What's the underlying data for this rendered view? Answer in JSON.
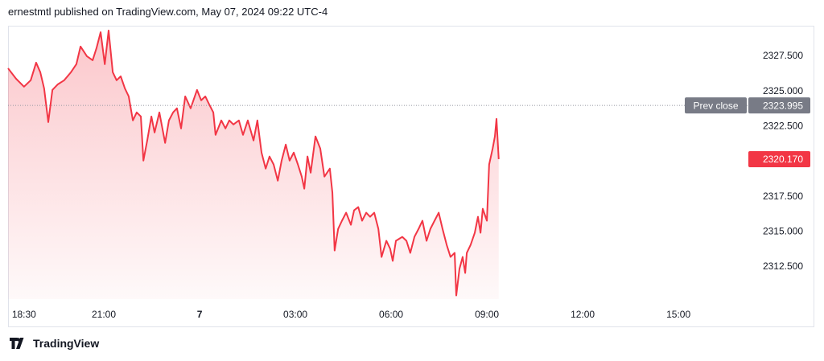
{
  "header": "ernestmtl published on TradingView.com, May 07, 2024 09:22 UTC-4",
  "footer": "TradingView",
  "chart_data": {
    "type": "line",
    "x": [
      0,
      0.25,
      0.5,
      0.71,
      0.88,
      1.01,
      1.13,
      1.26,
      1.39,
      1.56,
      1.76,
      1.97,
      2.14,
      2.27,
      2.47,
      2.65,
      2.77,
      2.9,
      3.03,
      3.15,
      3.28,
      3.4,
      3.53,
      3.66,
      3.78,
      3.91,
      4.03,
      4.16,
      4.24,
      4.36,
      4.49,
      4.59,
      4.74,
      4.92,
      5.04,
      5.17,
      5.29,
      5.42,
      5.55,
      5.72,
      5.92,
      6.05,
      6.18,
      6.3,
      6.43,
      6.5,
      6.68,
      6.81,
      6.93,
      7.06,
      7.23,
      7.36,
      7.51,
      7.69,
      7.81,
      7.94,
      8.07,
      8.19,
      8.32,
      8.45,
      8.57,
      8.7,
      8.82,
      8.95,
      9.08,
      9.2,
      9.28,
      9.38,
      9.48,
      9.63,
      9.78,
      9.91,
      10.08,
      10.16,
      10.23,
      10.34,
      10.46,
      10.59,
      10.74,
      10.84,
      10.97,
      11.09,
      11.22,
      11.34,
      11.47,
      11.6,
      11.7,
      11.85,
      11.97,
      12.05,
      12.15,
      12.35,
      12.48,
      12.6,
      12.73,
      12.86,
      12.98,
      13.11,
      13.23,
      13.36,
      13.49,
      13.61,
      13.74,
      13.86,
      13.99,
      14.04,
      14.14,
      14.24,
      14.32,
      14.37,
      14.49,
      14.62,
      14.72,
      14.8,
      14.87,
      15,
      15.07,
      15.18,
      15.25,
      15.3,
      15.37
    ],
    "series": [
      {
        "color": "#f23645",
        "values": [
          2326.64,
          2325.9,
          2325.33,
          2325.79,
          2327.04,
          2326.36,
          2325.21,
          2322.81,
          2325.1,
          2325.5,
          2325.79,
          2326.36,
          2326.93,
          2328.19,
          2327.5,
          2327.21,
          2328.07,
          2329.21,
          2326.93,
          2329.33,
          2326.36,
          2325.79,
          2326.07,
          2325.21,
          2324.64,
          2322.93,
          2323.5,
          2323.21,
          2320.07,
          2321.5,
          2323.21,
          2322.07,
          2323.5,
          2321.33,
          2322.93,
          2323.5,
          2323.79,
          2322.36,
          2324.64,
          2323.79,
          2325.1,
          2324.36,
          2324.64,
          2324.07,
          2323.5,
          2321.9,
          2322.93,
          2322.36,
          2322.93,
          2322.64,
          2322.93,
          2321.9,
          2322.93,
          2321.5,
          2322.93,
          2320.64,
          2319.5,
          2320.36,
          2319.79,
          2318.64,
          2320.07,
          2321.21,
          2320.07,
          2320.64,
          2319.79,
          2318.93,
          2318.07,
          2320.36,
          2319.21,
          2321.79,
          2320.93,
          2318.93,
          2319.5,
          2317.79,
          2313.67,
          2315.21,
          2315.79,
          2316.36,
          2315.5,
          2316.53,
          2316.76,
          2315.79,
          2316.36,
          2316.07,
          2316.36,
          2315.21,
          2313.21,
          2314.36,
          2313.79,
          2312.93,
          2314.36,
          2314.64,
          2314.36,
          2313.5,
          2314.64,
          2315.21,
          2315.79,
          2314.36,
          2315.21,
          2315.79,
          2316.36,
          2315.21,
          2314.07,
          2313.21,
          2313.5,
          2310.47,
          2312.36,
          2313.21,
          2312.07,
          2313.5,
          2314.07,
          2314.93,
          2316.07,
          2314.93,
          2316.64,
          2315.79,
          2319.79,
          2320.93,
          2321.79,
          2323.04,
          2320.17
        ]
      }
    ],
    "xlim": [
      0,
      23.19
    ],
    "ylim": [
      2310.21,
      2329.67
    ],
    "xticks": [
      {
        "value": 0.5,
        "label": "18:30"
      },
      {
        "value": 3,
        "label": "21:00"
      },
      {
        "value": 6,
        "label": "7"
      },
      {
        "value": 9,
        "label": "03:00"
      },
      {
        "value": 12,
        "label": "06:00"
      },
      {
        "value": 15,
        "label": "09:00"
      },
      {
        "value": 18,
        "label": "12:00"
      },
      {
        "value": 21,
        "label": "15:00"
      }
    ],
    "yticks": [
      {
        "value": 2312.5,
        "label": "2312.500"
      },
      {
        "value": 2315,
        "label": "2315.000"
      },
      {
        "value": 2317.5,
        "label": "2317.500"
      },
      {
        "value": 2322.5,
        "label": "2322.500"
      },
      {
        "value": 2325,
        "label": "2325.000"
      },
      {
        "value": 2327.5,
        "label": "2327.500"
      }
    ],
    "prev_close": {
      "label": "Prev close",
      "value": 2323.995
    },
    "last_price": {
      "value": 2320.17,
      "label": "2320.170"
    },
    "grid": false
  }
}
